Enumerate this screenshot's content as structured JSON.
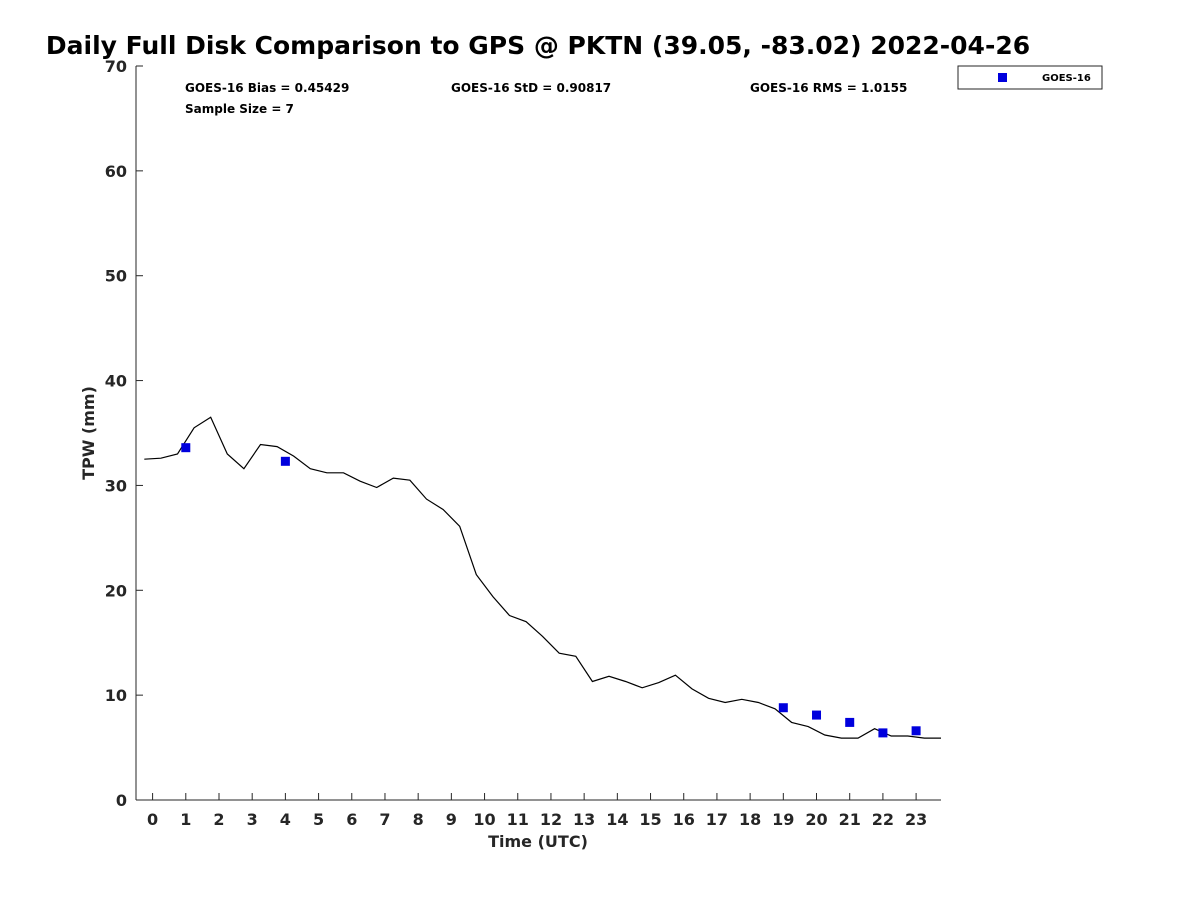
{
  "chart_data": {
    "type": "line",
    "title": "Daily Full Disk Comparison to GPS @ PKTN (39.05, -83.02) 2022-04-26",
    "xlabel": "Time (UTC)",
    "ylabel": "TPW (mm)",
    "xlim": [
      -0.5,
      23.75
    ],
    "ylim": [
      0,
      70
    ],
    "x_ticks": [
      "0",
      "1",
      "2",
      "3",
      "4",
      "5",
      "6",
      "7",
      "8",
      "9",
      "10",
      "11",
      "12",
      "13",
      "14",
      "15",
      "16",
      "17",
      "18",
      "19",
      "20",
      "21",
      "22",
      "23"
    ],
    "y_ticks": [
      "0",
      "10",
      "20",
      "30",
      "40",
      "50",
      "60",
      "70"
    ],
    "grid": false,
    "legend_position": "top-right (outside plot)",
    "stats": {
      "bias": "GOES-16 Bias = 0.45429",
      "std": "GOES-16 StD = 0.90817",
      "rms": "GOES-16 RMS = 1.0155",
      "sample": "Sample Size = 7"
    },
    "series": [
      {
        "kind": "line",
        "color": "#000000",
        "x": [
          -0.25,
          0.25,
          0.75,
          1.25,
          1.75,
          2.25,
          2.75,
          3.25,
          3.75,
          4.25,
          4.75,
          5.25,
          5.75,
          6.25,
          6.75,
          7.25,
          7.75,
          8.25,
          8.75,
          9.25,
          9.75,
          10.25,
          10.75,
          11.25,
          11.75,
          12.25,
          12.75,
          13.25,
          13.75,
          14.25,
          14.75,
          15.25,
          15.75,
          16.25,
          16.75,
          17.25,
          17.75,
          18.25,
          18.75,
          19.25,
          19.75,
          20.25,
          20.75,
          21.25,
          21.75,
          22.25,
          22.75,
          23.25,
          23.75
        ],
        "y": [
          32.5,
          32.6,
          33.0,
          35.5,
          36.5,
          33.0,
          31.6,
          33.9,
          33.7,
          32.8,
          31.6,
          31.2,
          31.2,
          30.4,
          29.8,
          30.7,
          30.5,
          28.7,
          27.7,
          26.1,
          21.5,
          19.4,
          17.6,
          17.0,
          15.6,
          14.0,
          13.7,
          11.3,
          11.8,
          11.3,
          10.7,
          11.2,
          11.9,
          10.6,
          9.7,
          9.3,
          9.6,
          9.3,
          8.7,
          7.4,
          7.0,
          6.2,
          5.9,
          5.9,
          6.8,
          6.1,
          6.1,
          5.9,
          5.9
        ]
      },
      {
        "kind": "scatter",
        "name": "GOES-16",
        "color": "#0000dd",
        "x": [
          1,
          4,
          19,
          20,
          21,
          22,
          23
        ],
        "y": [
          33.6,
          32.3,
          8.8,
          8.1,
          7.4,
          6.4,
          6.6
        ]
      }
    ]
  }
}
